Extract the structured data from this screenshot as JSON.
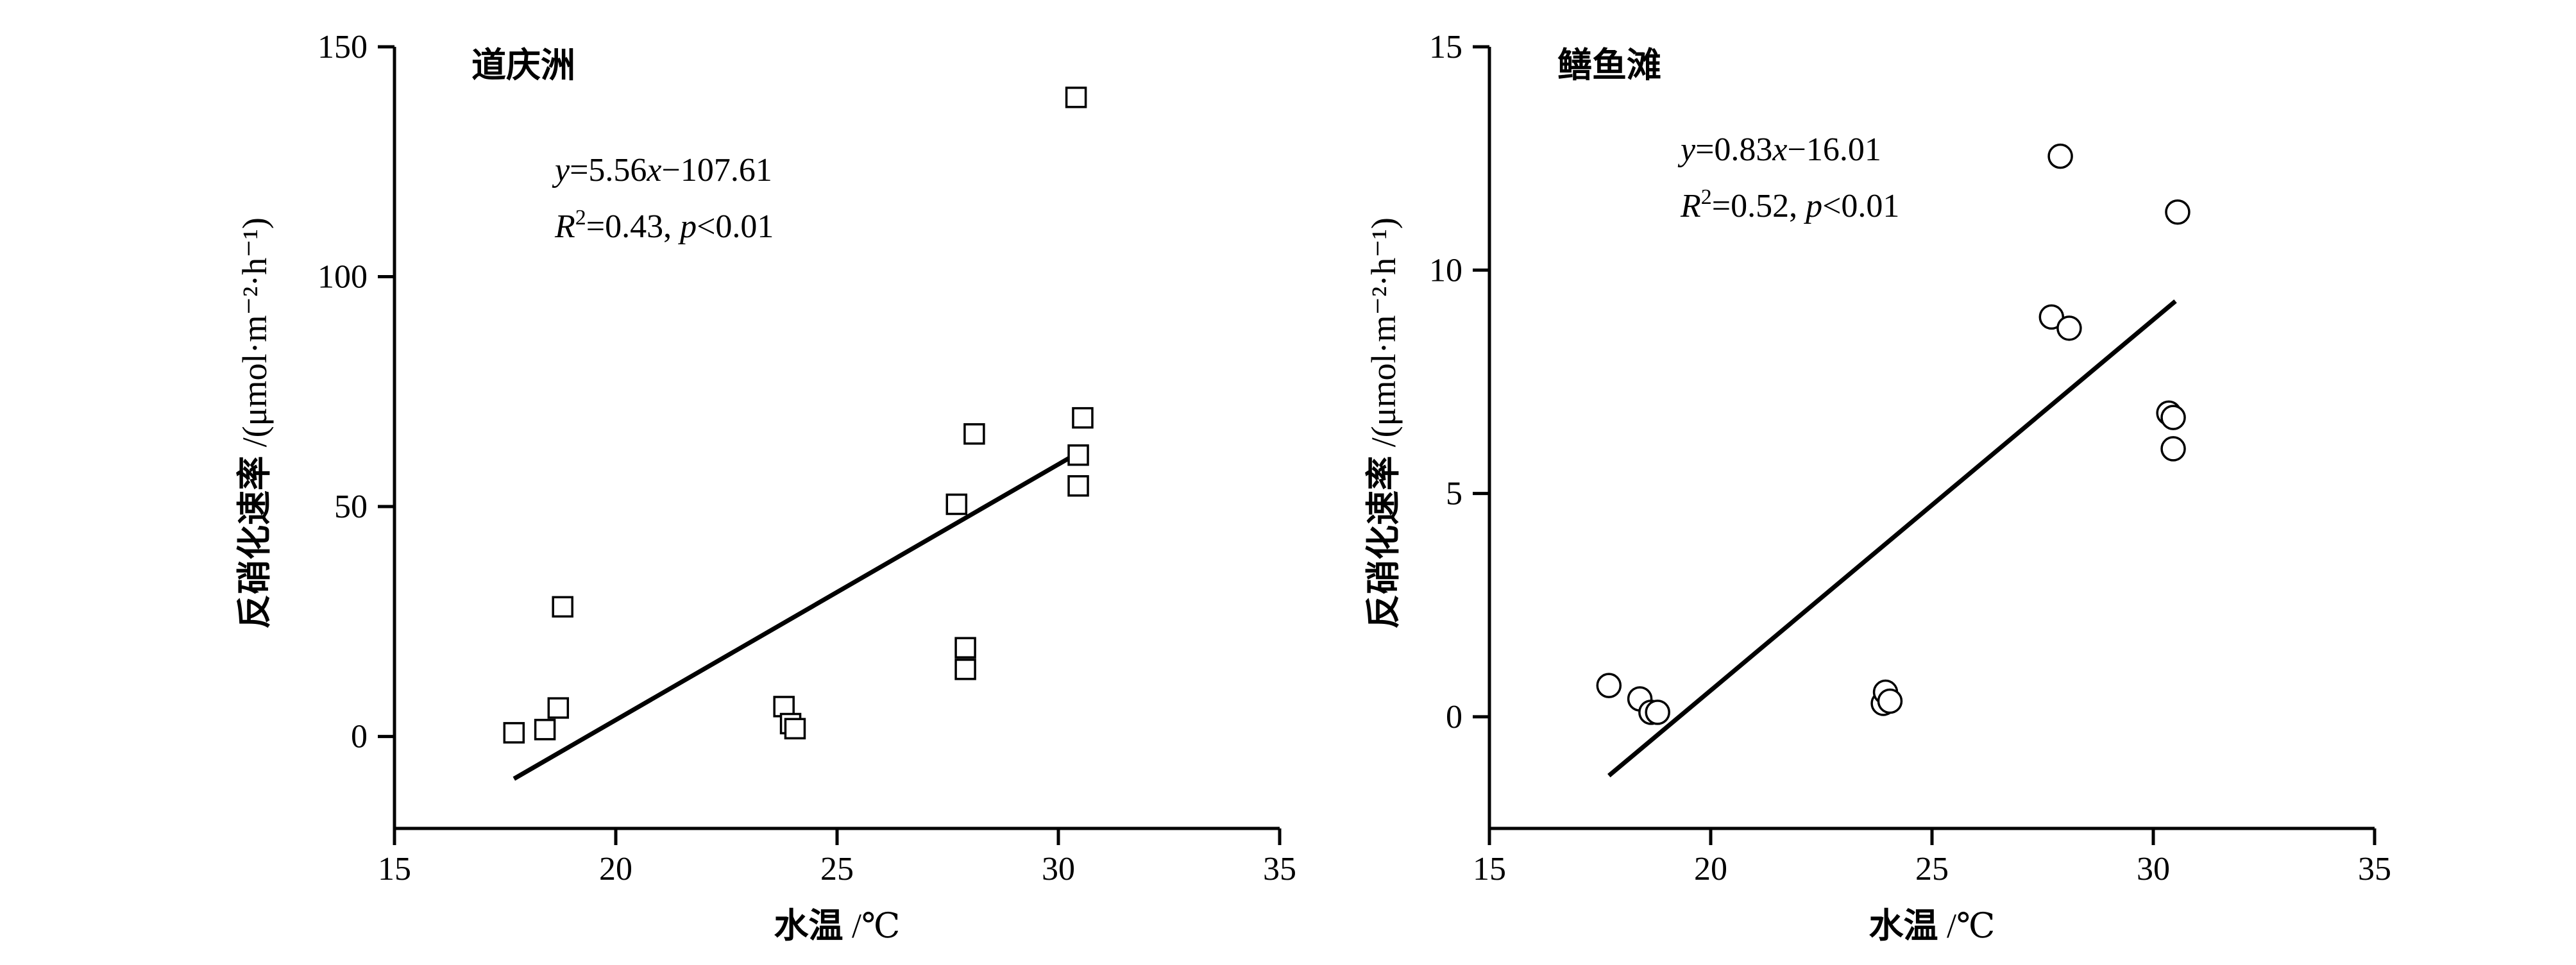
{
  "chart_data": [
    {
      "type": "scatter",
      "site": "道庆洲",
      "marker": "square",
      "xlabel_main": "水温",
      "xlabel_unit": " /℃",
      "ylabel_main": "反硝化速率",
      "ylabel_unit": " /(μmol·m⁻²·h⁻¹)",
      "xlim": [
        15,
        35
      ],
      "ylim": [
        -20,
        150
      ],
      "xticks": [
        15,
        20,
        25,
        30,
        35
      ],
      "yticks": [
        0,
        50,
        100,
        150
      ],
      "points": [
        {
          "x": 17.7,
          "y": 0.8
        },
        {
          "x": 18.4,
          "y": 1.5
        },
        {
          "x": 18.7,
          "y": 6.2
        },
        {
          "x": 18.8,
          "y": 28.2
        },
        {
          "x": 23.8,
          "y": 6.5
        },
        {
          "x": 23.95,
          "y": 2.8
        },
        {
          "x": 24.05,
          "y": 1.7
        },
        {
          "x": 27.7,
          "y": 50.5
        },
        {
          "x": 27.9,
          "y": 19.3
        },
        {
          "x": 27.9,
          "y": 14.6
        },
        {
          "x": 28.1,
          "y": 65.8
        },
        {
          "x": 30.4,
          "y": 139
        },
        {
          "x": 30.45,
          "y": 61.2
        },
        {
          "x": 30.45,
          "y": 54.5
        },
        {
          "x": 30.55,
          "y": 69.3
        }
      ],
      "fit": {
        "slope": 5.56,
        "intercept": -107.61,
        "x_range": [
          17.7,
          30.6
        ]
      },
      "equation": {
        "y_var": "y",
        "eq_mid": "=5.56",
        "x_var": "x",
        "eq_end": "−107.61"
      },
      "stats": {
        "r_var": "R",
        "r_sup": "2",
        "r_val": "=0.43, ",
        "p_var": "p",
        "p_val": "<0.01"
      }
    },
    {
      "type": "scatter",
      "site": "鳝鱼滩",
      "marker": "circle",
      "xlabel_main": "水温",
      "xlabel_unit": " /℃",
      "ylabel_main": "反硝化速率",
      "ylabel_unit": " /(μmol·m⁻²·h⁻¹)",
      "xlim": [
        15,
        35
      ],
      "ylim": [
        -2.5,
        15
      ],
      "xticks": [
        15,
        20,
        25,
        30,
        35
      ],
      "yticks": [
        0,
        5,
        10,
        15
      ],
      "points": [
        {
          "x": 17.7,
          "y": 0.7
        },
        {
          "x": 18.4,
          "y": 0.4
        },
        {
          "x": 18.65,
          "y": 0.1
        },
        {
          "x": 18.8,
          "y": 0.1
        },
        {
          "x": 23.9,
          "y": 0.3
        },
        {
          "x": 23.95,
          "y": 0.55
        },
        {
          "x": 24.05,
          "y": 0.35
        },
        {
          "x": 27.7,
          "y": 8.95
        },
        {
          "x": 27.9,
          "y": 12.55
        },
        {
          "x": 28.1,
          "y": 8.7
        },
        {
          "x": 30.35,
          "y": 6.8
        },
        {
          "x": 30.45,
          "y": 6.7
        },
        {
          "x": 30.45,
          "y": 6.0
        },
        {
          "x": 30.55,
          "y": 11.3
        }
      ],
      "fit": {
        "slope": 0.83,
        "intercept": -16.01,
        "x_range": [
          17.7,
          30.5
        ]
      },
      "equation": {
        "y_var": "y",
        "eq_mid": "=0.83",
        "x_var": "x",
        "eq_end": "−16.01"
      },
      "stats": {
        "r_var": "R",
        "r_sup": "2",
        "r_val": "=0.52, ",
        "p_var": "p",
        "p_val": "<0.01"
      }
    }
  ]
}
